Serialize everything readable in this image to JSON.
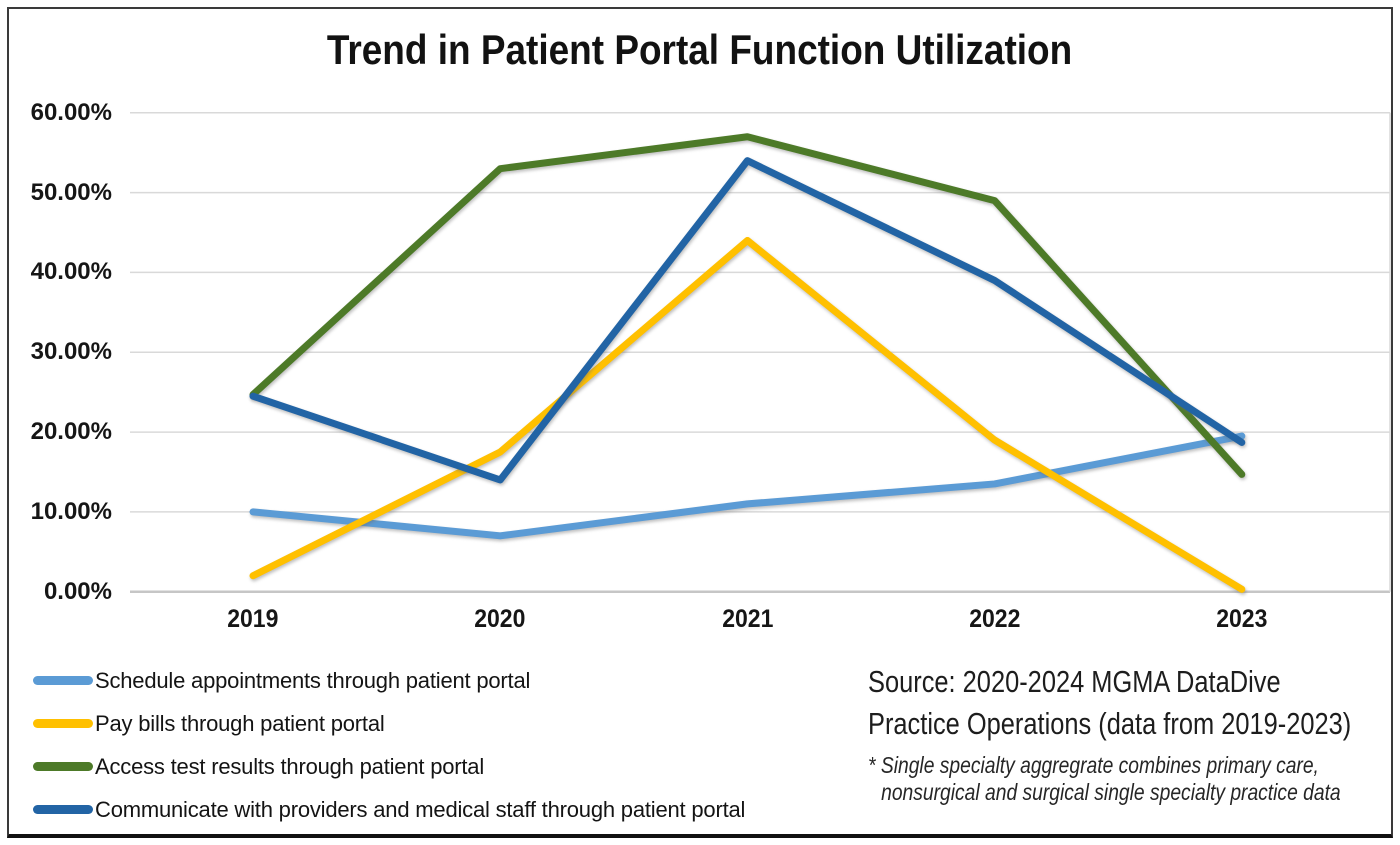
{
  "title": "Trend in Patient Portal Function Utilization",
  "source": {
    "line1": "Source: 2020-2024 MGMA DataDive",
    "line2": "Practice Operations (data from 2019-2023)",
    "footnote_line1": "* Single specialty aggregrate combines primary care,",
    "footnote_line2": "nonsurgical and surgical single specialty practice data"
  },
  "chart_data": {
    "type": "line",
    "title": "Trend in Patient Portal Function Utilization",
    "categories": [
      "2019",
      "2020",
      "2021",
      "2022",
      "2023"
    ],
    "series": [
      {
        "name": "Schedule appointments through patient portal",
        "color": "#5B9BD5",
        "values": [
          10,
          7,
          11,
          13.5,
          19.5
        ]
      },
      {
        "name": "Pay bills through patient portal",
        "color": "#FFC000",
        "values": [
          2,
          17.5,
          44,
          19,
          0.3
        ]
      },
      {
        "name": "Access test results through patient portal",
        "color": "#4D7A28",
        "values": [
          24.7,
          53,
          57,
          49,
          14.7
        ]
      },
      {
        "name": "Communicate with providers and medical staff through patient portal",
        "color": "#2264A5",
        "values": [
          24.5,
          14,
          54,
          39,
          18.7
        ]
      }
    ],
    "ylim": [
      0,
      60
    ],
    "yticks": [
      "60.00%",
      "50.00%",
      "40.00%",
      "30.00%",
      "20.00%",
      "10.00%",
      "0.00%"
    ],
    "ytick_values": [
      60,
      50,
      40,
      30,
      20,
      10,
      0
    ],
    "grid": true,
    "legend_position": "bottom-left",
    "xlabel": "",
    "ylabel": ""
  },
  "colors": {
    "grid": "#D9D9D9",
    "axis_line": "#C6C6C6",
    "text": "#161616",
    "border": "#3a3a3a"
  }
}
